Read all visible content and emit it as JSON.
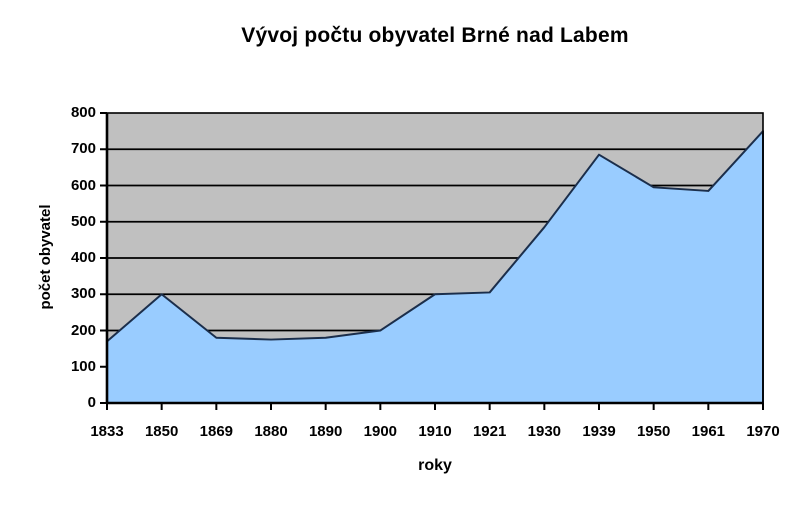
{
  "chart_data": {
    "type": "area",
    "title": "Vývoj počtu obyvatel Brné nad Labem",
    "xlabel": "roky",
    "ylabel": "počet obyvatel",
    "categories": [
      "1833",
      "1850",
      "1869",
      "1880",
      "1890",
      "1900",
      "1910",
      "1921",
      "1930",
      "1939",
      "1950",
      "1961",
      "1970"
    ],
    "values": [
      170,
      300,
      180,
      175,
      180,
      200,
      300,
      305,
      485,
      685,
      595,
      585,
      750
    ],
    "ylim": [
      0,
      800
    ],
    "y_ticks": [
      0,
      100,
      200,
      300,
      400,
      500,
      600,
      700,
      800
    ],
    "grid": "horizontal",
    "legend": "none",
    "colors": {
      "area_fill": "#99ccff",
      "area_stroke": "#1b2e4b",
      "plot_bg": "#c0c0c0",
      "grid_line": "#000000",
      "axis_line": "#000000",
      "text": "#000000",
      "page_bg": "#ffffff"
    }
  }
}
